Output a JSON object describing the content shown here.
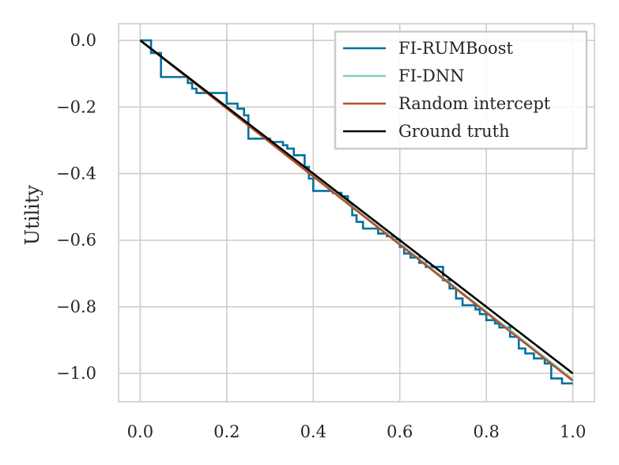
{
  "chart_data": {
    "type": "line",
    "title": "",
    "xlabel": "",
    "ylabel": "Utility",
    "xlim": [
      -0.05,
      1.05
    ],
    "ylim": [
      -1.085,
      0.05
    ],
    "xticks": [
      0.0,
      0.2,
      0.4,
      0.6,
      0.8,
      1.0
    ],
    "xtick_labels": [
      "0.0",
      "0.2",
      "0.4",
      "0.6",
      "0.8",
      "1.0"
    ],
    "yticks": [
      0.0,
      -0.2,
      -0.4,
      -0.6,
      -0.8,
      -1.0
    ],
    "ytick_labels": [
      "0.0",
      "−0.2",
      "−0.4",
      "−0.6",
      "−0.8",
      "−1.0"
    ],
    "grid": true,
    "legend_position": "top-right",
    "series": [
      {
        "name": "FI-RUMBoost",
        "color": "#0070a0",
        "style": "step",
        "x": [
          0.0,
          0.025,
          0.025,
          0.048,
          0.048,
          0.11,
          0.11,
          0.12,
          0.12,
          0.13,
          0.13,
          0.2,
          0.2,
          0.225,
          0.225,
          0.24,
          0.24,
          0.25,
          0.25,
          0.3,
          0.3,
          0.33,
          0.33,
          0.34,
          0.34,
          0.355,
          0.355,
          0.38,
          0.38,
          0.39,
          0.39,
          0.4,
          0.4,
          0.445,
          0.445,
          0.465,
          0.465,
          0.48,
          0.48,
          0.49,
          0.49,
          0.5,
          0.5,
          0.515,
          0.515,
          0.55,
          0.55,
          0.57,
          0.57,
          0.585,
          0.585,
          0.6,
          0.6,
          0.61,
          0.61,
          0.625,
          0.625,
          0.645,
          0.645,
          0.66,
          0.66,
          0.7,
          0.7,
          0.715,
          0.715,
          0.73,
          0.73,
          0.745,
          0.745,
          0.775,
          0.775,
          0.785,
          0.785,
          0.8,
          0.8,
          0.82,
          0.82,
          0.83,
          0.83,
          0.855,
          0.855,
          0.875,
          0.875,
          0.89,
          0.89,
          0.91,
          0.91,
          0.935,
          0.935,
          0.95,
          0.95,
          0.975,
          0.975,
          1.0
        ],
        "y": [
          0.0,
          0.0,
          -0.038,
          -0.038,
          -0.11,
          -0.11,
          -0.128,
          -0.128,
          -0.145,
          -0.145,
          -0.158,
          -0.158,
          -0.19,
          -0.19,
          -0.205,
          -0.205,
          -0.225,
          -0.225,
          -0.295,
          -0.295,
          -0.305,
          -0.305,
          -0.315,
          -0.315,
          -0.325,
          -0.325,
          -0.345,
          -0.345,
          -0.38,
          -0.38,
          -0.415,
          -0.415,
          -0.452,
          -0.452,
          -0.458,
          -0.458,
          -0.468,
          -0.468,
          -0.49,
          -0.49,
          -0.525,
          -0.525,
          -0.545,
          -0.545,
          -0.565,
          -0.565,
          -0.58,
          -0.58,
          -0.588,
          -0.588,
          -0.598,
          -0.598,
          -0.62,
          -0.62,
          -0.64,
          -0.64,
          -0.652,
          -0.652,
          -0.668,
          -0.668,
          -0.68,
          -0.68,
          -0.72,
          -0.72,
          -0.745,
          -0.745,
          -0.775,
          -0.775,
          -0.795,
          -0.795,
          -0.808,
          -0.808,
          -0.822,
          -0.822,
          -0.84,
          -0.84,
          -0.85,
          -0.85,
          -0.862,
          -0.862,
          -0.89,
          -0.89,
          -0.925,
          -0.925,
          -0.94,
          -0.94,
          -0.955,
          -0.955,
          -0.97,
          -0.97,
          -1.015,
          -1.015,
          -1.03,
          -1.03
        ]
      },
      {
        "name": "FI-DNN",
        "color": "#7dd3c0",
        "style": "line",
        "x": [
          0.0,
          1.0
        ],
        "y": [
          0.0,
          -1.018
        ]
      },
      {
        "name": "Random intercept",
        "color": "#b5502a",
        "style": "line",
        "x": [
          0.0,
          1.0
        ],
        "y": [
          0.0,
          -1.022
        ]
      },
      {
        "name": "Ground truth",
        "color": "#000000",
        "style": "line",
        "x": [
          0.0,
          1.0
        ],
        "y": [
          0.0,
          -1.0
        ]
      }
    ]
  }
}
